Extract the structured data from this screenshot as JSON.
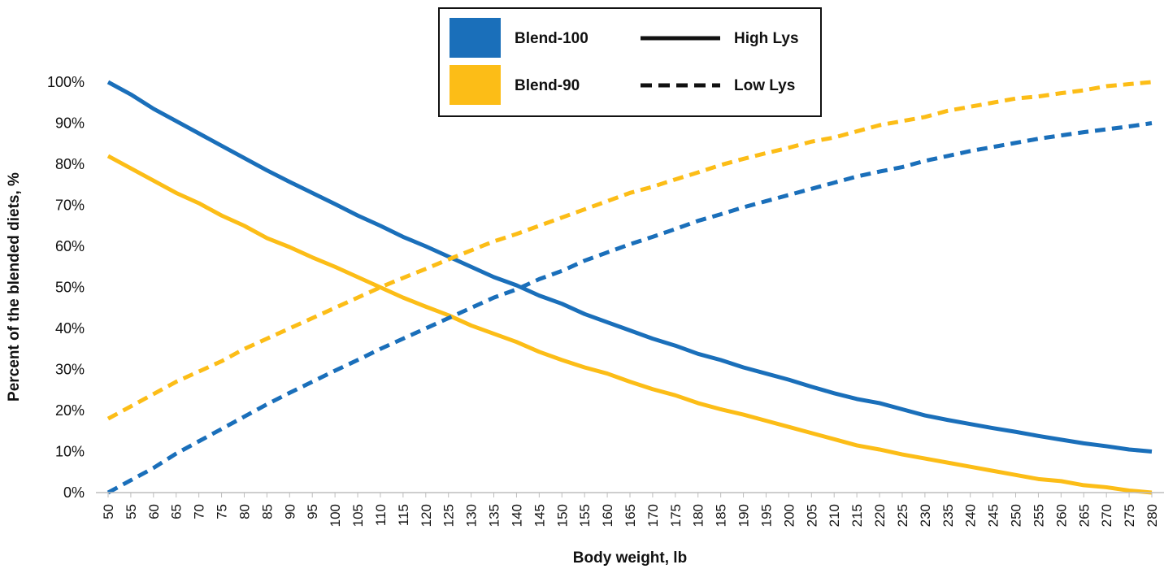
{
  "chart_data": {
    "type": "line",
    "xlabel": "Body weight, lb",
    "ylabel": "Percent of the blended diets, %",
    "x": [
      50,
      55,
      60,
      65,
      70,
      75,
      80,
      85,
      90,
      95,
      100,
      105,
      110,
      115,
      120,
      125,
      130,
      135,
      140,
      145,
      150,
      155,
      160,
      165,
      170,
      175,
      180,
      185,
      190,
      195,
      200,
      205,
      210,
      215,
      220,
      225,
      230,
      235,
      240,
      245,
      250,
      255,
      260,
      265,
      270,
      275,
      280
    ],
    "ylim": [
      0,
      100
    ],
    "yticks": [
      0,
      10,
      20,
      30,
      40,
      50,
      60,
      70,
      80,
      90,
      100
    ],
    "ytick_labels": [
      "0%",
      "10%",
      "20%",
      "30%",
      "40%",
      "50%",
      "60%",
      "70%",
      "80%",
      "90%",
      "100%"
    ],
    "grid": false,
    "legend_position": "top-center",
    "legend": {
      "colors": [
        {
          "label": "Blend-100",
          "color": "#1a6fba"
        },
        {
          "label": "Blend-90",
          "color": "#fcbd17"
        }
      ],
      "styles": [
        {
          "label": "High Lys",
          "dash": "solid"
        },
        {
          "label": "Low Lys",
          "dash": "dashed"
        }
      ]
    },
    "series": [
      {
        "blend": "Blend-100",
        "lysine": "High Lys",
        "color": "#1a6fba",
        "dash": "solid",
        "values": [
          100,
          97,
          93.5,
          90.5,
          87.5,
          84.5,
          81.5,
          78.5,
          75.7,
          73,
          70.3,
          67.5,
          65,
          62.3,
          60,
          57.5,
          55,
          52.5,
          50.5,
          48,
          46,
          43.5,
          41.5,
          39.5,
          37.5,
          35.8,
          33.8,
          32.3,
          30.5,
          29,
          27.5,
          25.8,
          24.2,
          22.8,
          21.8,
          20.3,
          18.8,
          17.7,
          16.7,
          15.7,
          14.8,
          13.8,
          12.9,
          12,
          11.3,
          10.5,
          10
        ]
      },
      {
        "blend": "Blend-90",
        "lysine": "High Lys",
        "color": "#fcbd17",
        "dash": "solid",
        "values": [
          82,
          79,
          76,
          73,
          70.5,
          67.5,
          65,
          62,
          59.8,
          57.3,
          55,
          52.5,
          50,
          47.5,
          45.3,
          43.2,
          40.7,
          38.7,
          36.7,
          34.3,
          32.3,
          30.5,
          29,
          27,
          25.2,
          23.7,
          21.8,
          20.3,
          19,
          17.5,
          16,
          14.5,
          13,
          11.5,
          10.5,
          9.3,
          8.3,
          7.3,
          6.3,
          5.3,
          4.3,
          3.3,
          2.8,
          1.8,
          1.3,
          0.5,
          0
        ]
      },
      {
        "blend": "Blend-90",
        "lysine": "Low Lys",
        "color": "#fcbd17",
        "dash": "dashed",
        "values": [
          18,
          21,
          24,
          27,
          29.5,
          32,
          35,
          37.5,
          40,
          42.5,
          45,
          47.5,
          50,
          52.3,
          54.5,
          56.8,
          59,
          61.2,
          63,
          65,
          67,
          69,
          71,
          73,
          74.5,
          76.3,
          78,
          79.8,
          81.3,
          82.7,
          84,
          85.5,
          86.5,
          88,
          89.5,
          90.5,
          91.5,
          93,
          94,
          95,
          96,
          96.5,
          97.3,
          98,
          99,
          99.5,
          100
        ]
      },
      {
        "blend": "Blend-100",
        "lysine": "Low Lys",
        "color": "#1a6fba",
        "dash": "dashed",
        "values": [
          0,
          3,
          6,
          9.5,
          12.5,
          15.5,
          18.5,
          21.5,
          24.3,
          27,
          29.7,
          32.3,
          35,
          37.5,
          40,
          42.5,
          45,
          47.5,
          49.5,
          52,
          54,
          56.5,
          58.5,
          60.5,
          62.3,
          64.2,
          66.2,
          67.8,
          69.5,
          71,
          72.5,
          74,
          75.5,
          77,
          78.2,
          79.3,
          80.8,
          82,
          83.2,
          84.2,
          85.2,
          86.2,
          87,
          87.8,
          88.5,
          89.2,
          90
        ]
      }
    ]
  }
}
